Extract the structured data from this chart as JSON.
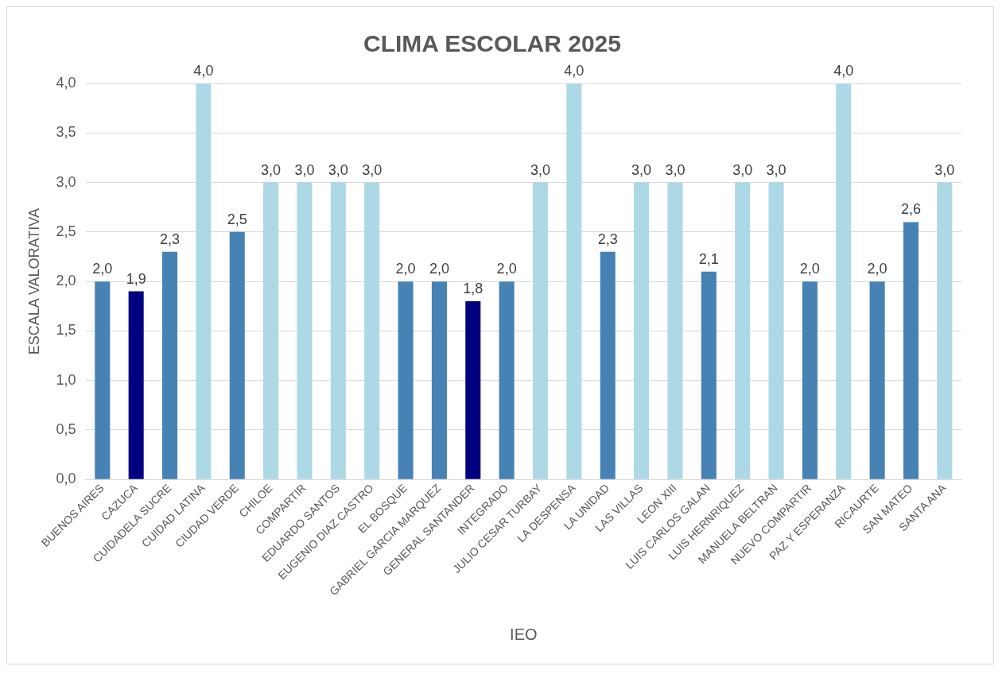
{
  "chart_data": {
    "type": "bar",
    "title": "CLIMA ESCOLAR 2025",
    "xlabel": "IEO",
    "ylabel": "ESCALA VALORATIVA",
    "categories": [
      "BUENOS AIRES",
      "CAZUCA",
      "CUIDADELA SUCRE",
      "CUIDAD LATINA",
      "CIUDAD VERDE",
      "CHILOE",
      "COMPARTIR",
      "EDUARDO SANTOS",
      "EUGENIO DIAZ CASTRO",
      "EL BOSQUE",
      "GABRIEL GARCIA MARQUEZ",
      "GENERAL SANTANDER",
      "INTEGRADO",
      "JULIO CESAR TURBAY",
      "LA DESPENSA",
      "LA UNIDAD",
      "LAS VILLAS",
      "LEON XIII",
      "LUIS CARLOS GALAN",
      "LUIS HERNRIQUEZ",
      "MANUELA BELTRAN",
      "NUEVO COMPARTIR",
      "PAZ Y ESPERANZA",
      "RICAURTE",
      "SAN MATEO",
      "SANTA ANA"
    ],
    "values": [
      2.0,
      1.9,
      2.3,
      4.0,
      2.5,
      3.0,
      3.0,
      3.0,
      3.0,
      2.0,
      2.0,
      1.8,
      2.0,
      3.0,
      4.0,
      2.3,
      3.0,
      3.0,
      2.1,
      3.0,
      3.0,
      2.0,
      4.0,
      2.0,
      2.6,
      3.0
    ],
    "value_labels": [
      "2,0",
      "1,9",
      "2,3",
      "4,0",
      "2,5",
      "3,0",
      "3,0",
      "3,0",
      "3,0",
      "2,0",
      "2,0",
      "1,8",
      "2,0",
      "3,0",
      "4,0",
      "2,3",
      "3,0",
      "3,0",
      "2,1",
      "3,0",
      "3,0",
      "2,0",
      "4,0",
      "2,0",
      "2,6",
      "3,0"
    ],
    "colors": [
      "#4682b4",
      "#000080",
      "#4682b4",
      "#add8e6",
      "#4682b4",
      "#add8e6",
      "#add8e6",
      "#add8e6",
      "#add8e6",
      "#4682b4",
      "#4682b4",
      "#000080",
      "#4682b4",
      "#add8e6",
      "#add8e6",
      "#4682b4",
      "#add8e6",
      "#add8e6",
      "#4682b4",
      "#add8e6",
      "#add8e6",
      "#4682b4",
      "#add8e6",
      "#4682b4",
      "#4682b4",
      "#add8e6"
    ],
    "ylim": [
      0,
      4.0
    ],
    "yticks": [
      {
        "value": 0,
        "label": "0,0"
      },
      {
        "value": 0.5,
        "label": "0,5"
      },
      {
        "value": 1,
        "label": "1,0"
      },
      {
        "value": 1.5,
        "label": "1,5"
      },
      {
        "value": 2,
        "label": "2,0"
      },
      {
        "value": 2.5,
        "label": "2,5"
      },
      {
        "value": 3,
        "label": "3,0"
      },
      {
        "value": 3.5,
        "label": "3,5"
      },
      {
        "value": 4,
        "label": "4,0"
      }
    ],
    "grid": "y"
  }
}
